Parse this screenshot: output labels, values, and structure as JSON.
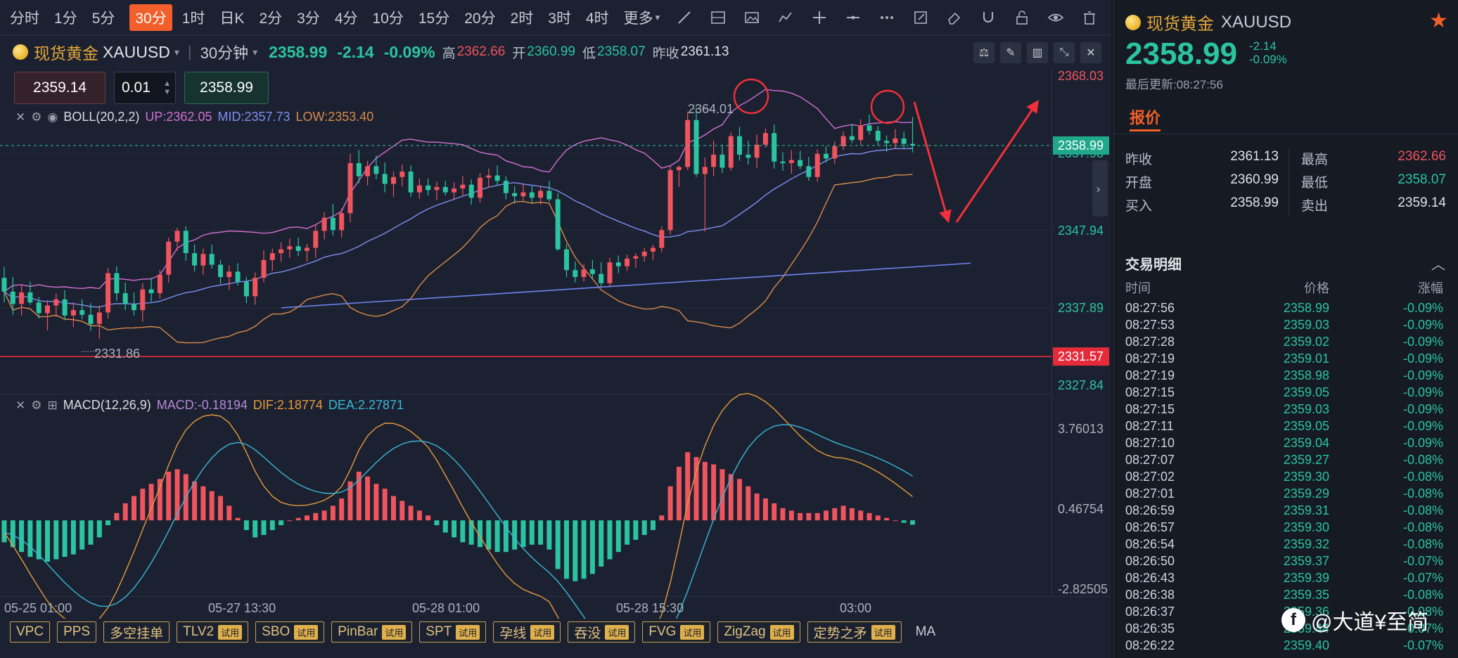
{
  "timeframes": [
    "分时",
    "1分",
    "5分",
    "30分",
    "1时",
    "日K",
    "2分",
    "3分",
    "4分",
    "10分",
    "15分",
    "20分",
    "2时",
    "3时",
    "4时",
    "更多"
  ],
  "quote_bar": {
    "name": "现货黄金",
    "code": "XAUUSD",
    "period": "30分钟",
    "last": "2358.99",
    "change": "-2.14",
    "change_pct": "-0.09%",
    "high_label": "高",
    "high": "2362.66",
    "open_label": "开",
    "open": "2360.99",
    "low_label": "低",
    "low": "2358.07",
    "prev_label": "昨收",
    "prev": "2361.13"
  },
  "order": {
    "sell_price": "2359.14",
    "qty": "0.01",
    "buy_price": "2358.99"
  },
  "boll_legend": {
    "name": "BOLL(20,2,2)",
    "up": "UP:2362.05",
    "mid": "MID:2357.73",
    "low": "LOW:2353.40"
  },
  "macd_legend": {
    "name": "MACD(12,26,9)",
    "macd": "MACD:-0.18194",
    "dif": "DIF:2.18774",
    "dea": "DEA:2.27871"
  },
  "price_axis": [
    "2368.03",
    "2357.98",
    "2347.94",
    "2337.89",
    "2327.84"
  ],
  "price_tags": {
    "current": "2358.99",
    "hline": "2331.57"
  },
  "price_marks": {
    "high_mark": "2364.01",
    "low_mark": "2331.86"
  },
  "macd_axis": [
    "3.76013",
    "0.46754",
    "-2.82505"
  ],
  "time_axis": [
    "05-25 01:00",
    "05-27 13:30",
    "05-28 01:00",
    "05-28 15:30",
    "03:00"
  ],
  "indicators": [
    {
      "label": "VPC",
      "trial": ""
    },
    {
      "label": "PPS",
      "trial": ""
    },
    {
      "label": "多空挂单",
      "trial": ""
    },
    {
      "label": "TLV2",
      "trial": "试用"
    },
    {
      "label": "SBO",
      "trial": "试用"
    },
    {
      "label": "PinBar",
      "trial": "试用"
    },
    {
      "label": "SPT",
      "trial": "试用"
    },
    {
      "label": "孕线",
      "trial": "试用"
    },
    {
      "label": "吞没",
      "trial": "试用"
    },
    {
      "label": "FVG",
      "trial": "试用"
    },
    {
      "label": "ZigZag",
      "trial": "试用"
    },
    {
      "label": "定势之矛",
      "trial": "试用"
    }
  ],
  "ma_label": "MA",
  "panel": {
    "name": "现货黄金",
    "code": "XAUUSD",
    "price": "2358.99",
    "change": "-2.14",
    "change_pct": "-0.09%",
    "updated": "最后更新:08:27:56",
    "tab": "报价",
    "quotes": [
      {
        "k1": "昨收",
        "v1": "2361.13",
        "k2": "最高",
        "v2": "2362.66"
      },
      {
        "k1": "开盘",
        "v1": "2360.99",
        "k2": "最低",
        "v2": "2358.07"
      },
      {
        "k1": "买入",
        "v1": "2358.99",
        "k2": "卖出",
        "v2": "2359.14"
      }
    ],
    "trade_title": "交易明细",
    "trade_headers": {
      "time": "时间",
      "price": "价格",
      "change": "涨幅"
    },
    "trades": [
      {
        "t": "08:27:56",
        "p": "2358.99",
        "c": "-0.09%"
      },
      {
        "t": "08:27:53",
        "p": "2359.03",
        "c": "-0.09%"
      },
      {
        "t": "08:27:28",
        "p": "2359.02",
        "c": "-0.09%"
      },
      {
        "t": "08:27:19",
        "p": "2359.01",
        "c": "-0.09%"
      },
      {
        "t": "08:27:19",
        "p": "2358.98",
        "c": "-0.09%"
      },
      {
        "t": "08:27:15",
        "p": "2359.05",
        "c": "-0.09%"
      },
      {
        "t": "08:27:15",
        "p": "2359.03",
        "c": "-0.09%"
      },
      {
        "t": "08:27:11",
        "p": "2359.05",
        "c": "-0.09%"
      },
      {
        "t": "08:27:10",
        "p": "2359.04",
        "c": "-0.09%"
      },
      {
        "t": "08:27:07",
        "p": "2359.27",
        "c": "-0.08%"
      },
      {
        "t": "08:27:02",
        "p": "2359.30",
        "c": "-0.08%"
      },
      {
        "t": "08:27:01",
        "p": "2359.29",
        "c": "-0.08%"
      },
      {
        "t": "08:26:59",
        "p": "2359.31",
        "c": "-0.08%"
      },
      {
        "t": "08:26:57",
        "p": "2359.30",
        "c": "-0.08%"
      },
      {
        "t": "08:26:54",
        "p": "2359.32",
        "c": "-0.08%"
      },
      {
        "t": "08:26:50",
        "p": "2359.37",
        "c": "-0.07%"
      },
      {
        "t": "08:26:43",
        "p": "2359.39",
        "c": "-0.07%"
      },
      {
        "t": "08:26:38",
        "p": "2359.35",
        "c": "-0.08%"
      },
      {
        "t": "08:26:37",
        "p": "2359.36",
        "c": "-0.08%"
      },
      {
        "t": "08:26:35",
        "p": "2359.44",
        "c": "-0.07%"
      },
      {
        "t": "08:26:22",
        "p": "2359.40",
        "c": "-0.07%"
      }
    ]
  },
  "watermark": "@大道¥至简",
  "colors": {
    "up": "#f0545e",
    "down": "#2bc4a1",
    "accent": "#f25f2a",
    "boll_up": "#d36fd2",
    "boll_mid": "#7d8ef0",
    "boll_low": "#d98a4c"
  },
  "chart_data": {
    "type": "candlestick",
    "symbol": "XAUUSD",
    "interval": "30分钟",
    "price_range": [
      2327.84,
      2368.03
    ],
    "macd_range": [
      -2.82505,
      3.76013
    ],
    "candles": [
      [
        2341.8,
        2343.2,
        2338.6,
        2340.0
      ],
      [
        2340.0,
        2341.9,
        2337.0,
        2338.4
      ],
      [
        2338.4,
        2340.8,
        2336.9,
        2339.9
      ],
      [
        2339.9,
        2341.3,
        2338.3,
        2338.6
      ],
      [
        2338.6,
        2339.3,
        2336.5,
        2337.2
      ],
      [
        2337.2,
        2338.9,
        2335.0,
        2338.2
      ],
      [
        2338.2,
        2339.8,
        2336.7,
        2339.0
      ],
      [
        2339.0,
        2340.2,
        2336.3,
        2336.9
      ],
      [
        2336.9,
        2338.6,
        2335.4,
        2337.6
      ],
      [
        2337.6,
        2339.0,
        2336.4,
        2337.0
      ],
      [
        2337.0,
        2338.5,
        2334.9,
        2335.8
      ],
      [
        2335.8,
        2338.2,
        2333.9,
        2337.3
      ],
      [
        2337.3,
        2343.1,
        2336.5,
        2342.4
      ],
      [
        2342.4,
        2343.3,
        2338.8,
        2339.8
      ],
      [
        2339.8,
        2341.2,
        2337.6,
        2338.4
      ],
      [
        2338.4,
        2339.9,
        2336.9,
        2337.6
      ],
      [
        2337.6,
        2341.1,
        2336.1,
        2340.3
      ],
      [
        2340.3,
        2341.8,
        2338.7,
        2339.8
      ],
      [
        2339.8,
        2342.8,
        2339.1,
        2342.2
      ],
      [
        2342.2,
        2347.0,
        2341.2,
        2346.5
      ],
      [
        2346.5,
        2348.3,
        2345.3,
        2347.9
      ],
      [
        2347.9,
        2348.5,
        2344.0,
        2345.0
      ],
      [
        2345.0,
        2346.1,
        2342.6,
        2343.4
      ],
      [
        2343.4,
        2345.6,
        2342.2,
        2344.9
      ],
      [
        2344.9,
        2346.1,
        2343.0,
        2343.5
      ],
      [
        2343.5,
        2344.1,
        2341.0,
        2341.9
      ],
      [
        2341.9,
        2343.4,
        2340.2,
        2342.6
      ],
      [
        2342.6,
        2343.7,
        2340.8,
        2341.3
      ],
      [
        2341.3,
        2341.9,
        2338.5,
        2339.4
      ],
      [
        2339.4,
        2342.5,
        2338.3,
        2341.8
      ],
      [
        2341.8,
        2345.4,
        2341.2,
        2344.1
      ],
      [
        2344.1,
        2345.6,
        2342.7,
        2345.0
      ],
      [
        2345.0,
        2346.4,
        2343.9,
        2345.5
      ],
      [
        2345.5,
        2346.9,
        2344.4,
        2345.9
      ],
      [
        2345.9,
        2347.0,
        2344.6,
        2345.3
      ],
      [
        2345.3,
        2346.2,
        2343.9,
        2345.7
      ],
      [
        2345.7,
        2348.6,
        2344.4,
        2347.9
      ],
      [
        2347.9,
        2350.3,
        2346.8,
        2349.6
      ],
      [
        2349.6,
        2351.4,
        2347.3,
        2348.0
      ],
      [
        2348.0,
        2350.8,
        2347.0,
        2350.2
      ],
      [
        2350.2,
        2357.9,
        2349.0,
        2356.7
      ],
      [
        2356.7,
        2358.4,
        2354.1,
        2355.0
      ],
      [
        2355.0,
        2357.0,
        2353.8,
        2356.3
      ],
      [
        2356.3,
        2357.7,
        2354.6,
        2355.3
      ],
      [
        2355.3,
        2356.8,
        2352.9,
        2354.0
      ],
      [
        2354.0,
        2355.6,
        2352.3,
        2354.9
      ],
      [
        2354.9,
        2356.5,
        2353.7,
        2355.6
      ],
      [
        2355.6,
        2356.4,
        2352.3,
        2352.9
      ],
      [
        2352.9,
        2354.7,
        2352.1,
        2353.8
      ],
      [
        2353.8,
        2354.7,
        2352.5,
        2353.2
      ],
      [
        2353.2,
        2354.3,
        2351.9,
        2353.6
      ],
      [
        2353.6,
        2354.4,
        2352.5,
        2352.9
      ],
      [
        2352.9,
        2354.2,
        2351.9,
        2353.4
      ],
      [
        2353.4,
        2355.0,
        2352.5,
        2353.9
      ],
      [
        2353.9,
        2354.6,
        2351.3,
        2352.2
      ],
      [
        2352.2,
        2355.4,
        2351.6,
        2354.8
      ],
      [
        2354.8,
        2356.0,
        2353.5,
        2355.1
      ],
      [
        2355.1,
        2356.4,
        2353.8,
        2354.4
      ],
      [
        2354.4,
        2355.0,
        2352.0,
        2352.8
      ],
      [
        2352.8,
        2353.7,
        2351.4,
        2352.4
      ],
      [
        2352.4,
        2354.1,
        2351.8,
        2352.9
      ],
      [
        2352.9,
        2353.7,
        2351.5,
        2352.2
      ],
      [
        2352.2,
        2353.7,
        2351.3,
        2353.1
      ],
      [
        2353.1,
        2354.4,
        2351.7,
        2352.0
      ],
      [
        2352.0,
        2352.8,
        2345.3,
        2345.5
      ],
      [
        2345.5,
        2346.2,
        2341.9,
        2342.8
      ],
      [
        2342.8,
        2343.9,
        2341.2,
        2341.9
      ],
      [
        2341.9,
        2343.6,
        2341.3,
        2342.9
      ],
      [
        2342.9,
        2344.1,
        2341.8,
        2342.3
      ],
      [
        2342.3,
        2343.8,
        2340.6,
        2341.1
      ],
      [
        2341.1,
        2344.4,
        2340.6,
        2343.8
      ],
      [
        2343.8,
        2344.7,
        2342.4,
        2343.3
      ],
      [
        2343.3,
        2344.8,
        2342.7,
        2344.3
      ],
      [
        2344.3,
        2345.0,
        2343.1,
        2344.6
      ],
      [
        2344.6,
        2345.7,
        2343.9,
        2345.2
      ],
      [
        2345.2,
        2346.1,
        2344.1,
        2345.7
      ],
      [
        2345.7,
        2348.5,
        2345.1,
        2348.0
      ],
      [
        2348.0,
        2356.3,
        2347.4,
        2355.8
      ],
      [
        2355.8,
        2356.4,
        2353.6,
        2356.2
      ],
      [
        2356.2,
        2363.4,
        2355.8,
        2362.3
      ],
      [
        2362.3,
        2363.9,
        2354.9,
        2355.3
      ],
      [
        2355.3,
        2357.4,
        2347.8,
        2356.2
      ],
      [
        2356.2,
        2359.6,
        2355.0,
        2357.8
      ],
      [
        2357.8,
        2359.1,
        2355.4,
        2356.1
      ],
      [
        2356.1,
        2360.7,
        2355.7,
        2360.2
      ],
      [
        2360.2,
        2361.4,
        2357.0,
        2357.8
      ],
      [
        2357.8,
        2359.6,
        2356.5,
        2357.4
      ],
      [
        2357.4,
        2360.4,
        2356.1,
        2359.1
      ],
      [
        2359.1,
        2361.2,
        2358.7,
        2360.6
      ],
      [
        2360.6,
        2361.7,
        2356.0,
        2356.9
      ],
      [
        2356.9,
        2358.1,
        2355.7,
        2356.7
      ],
      [
        2356.7,
        2358.4,
        2355.3,
        2357.1
      ],
      [
        2357.1,
        2358.3,
        2355.9,
        2356.3
      ],
      [
        2356.3,
        2357.5,
        2354.4,
        2354.9
      ],
      [
        2354.9,
        2358.5,
        2354.3,
        2357.9
      ],
      [
        2357.9,
        2358.9,
        2356.8,
        2357.3
      ],
      [
        2357.3,
        2359.5,
        2356.6,
        2358.9
      ],
      [
        2358.9,
        2360.8,
        2358.4,
        2360.2
      ],
      [
        2360.2,
        2361.8,
        2359.3,
        2359.7
      ],
      [
        2359.7,
        2362.4,
        2359.0,
        2361.6
      ],
      [
        2361.6,
        2363.0,
        2360.4,
        2360.9
      ],
      [
        2360.9,
        2361.5,
        2359.0,
        2359.6
      ],
      [
        2359.6,
        2360.3,
        2358.2,
        2359.3
      ],
      [
        2359.3,
        2361.1,
        2358.5,
        2359.9
      ],
      [
        2359.9,
        2360.8,
        2358.6,
        2359.2
      ],
      [
        2359.2,
        2362.7,
        2358.1,
        2358.99
      ]
    ],
    "macd_hist": [
      -0.9,
      -1.1,
      -1.3,
      -1.5,
      -1.6,
      -1.7,
      -1.6,
      -1.5,
      -1.4,
      -1.2,
      -1.0,
      -0.7,
      -0.2,
      0.3,
      0.7,
      1.0,
      1.3,
      1.5,
      1.7,
      2.0,
      2.1,
      1.9,
      1.6,
      1.4,
      1.2,
      1.0,
      0.6,
      0.1,
      -0.4,
      -0.7,
      -0.6,
      -0.4,
      -0.2,
      0.0,
      0.1,
      0.2,
      0.3,
      0.4,
      0.6,
      0.9,
      1.6,
      2.0,
      1.8,
      1.5,
      1.3,
      1.0,
      0.8,
      0.6,
      0.4,
      0.2,
      -0.2,
      -0.5,
      -0.7,
      -0.9,
      -1.0,
      -1.1,
      -1.2,
      -1.3,
      -1.3,
      -1.2,
      -1.1,
      -1.0,
      -1.0,
      -1.2,
      -2.0,
      -2.4,
      -2.5,
      -2.4,
      -2.2,
      -1.9,
      -1.6,
      -1.3,
      -1.0,
      -0.8,
      -0.6,
      -0.4,
      0.2,
      1.4,
      2.2,
      2.8,
      2.6,
      2.4,
      2.3,
      2.1,
      1.9,
      1.7,
      1.4,
      1.1,
      0.9,
      0.7,
      0.5,
      0.4,
      0.3,
      0.3,
      0.3,
      0.4,
      0.5,
      0.6,
      0.5,
      0.4,
      0.3,
      0.2,
      0.1,
      0.0,
      -0.1,
      -0.18
    ]
  }
}
